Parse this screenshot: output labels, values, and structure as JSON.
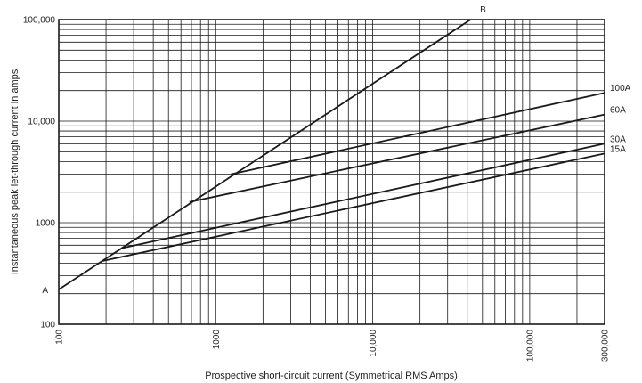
{
  "chart_data": {
    "type": "line",
    "xscale": "log",
    "yscale": "log",
    "xlim": [
      100,
      300000
    ],
    "ylim": [
      100,
      100000
    ],
    "grid": true,
    "xlabel": "Prospective short-circuit current (Symmetrical RMS Amps)",
    "ylabel": "Instantaneous peak let-through current in amps",
    "x_ticks": [
      {
        "value": 100,
        "label": "100"
      },
      {
        "value": 1000,
        "label": "1000"
      },
      {
        "value": 10000,
        "label": "10,000"
      },
      {
        "value": 100000,
        "label": "100,000"
      },
      {
        "value": 300000,
        "label": "300,000"
      }
    ],
    "y_ticks": [
      {
        "value": 100,
        "label": "100"
      },
      {
        "value": 1000,
        "label": "1000"
      },
      {
        "value": 10000,
        "label": "10,000"
      },
      {
        "value": 100000,
        "label": "100,000"
      }
    ],
    "series": [
      {
        "name": "A–B",
        "x": [
          100,
          42000
        ],
        "y": [
          220,
          100000
        ]
      },
      {
        "name": "100A",
        "x": [
          1250,
          300000
        ],
        "y": [
          3000,
          19000
        ]
      },
      {
        "name": "60A",
        "x": [
          680,
          300000
        ],
        "y": [
          1600,
          11600
        ]
      },
      {
        "name": "30A",
        "x": [
          250,
          300000
        ],
        "y": [
          560,
          6000
        ]
      },
      {
        "name": "15A",
        "x": [
          190,
          300000
        ],
        "y": [
          420,
          4800
        ]
      }
    ],
    "annotations": [
      {
        "text": "A",
        "x": 100,
        "y": 220
      },
      {
        "text": "B",
        "x": 42000,
        "y": 100000
      }
    ],
    "series_labels": [
      "100A",
      "60A",
      "30A",
      "15A"
    ]
  }
}
